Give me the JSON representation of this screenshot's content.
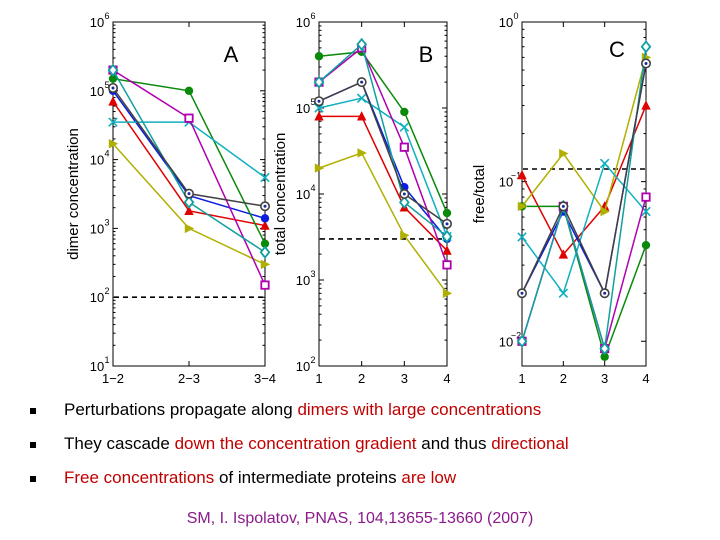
{
  "chart_data": [
    {
      "type": "line",
      "title": "A",
      "ylabel": "dimer concentration",
      "xlabel": "",
      "yscale": "log",
      "ylim": [
        10,
        1000000
      ],
      "y_ticks": [
        {
          "base": "10",
          "exp": "1"
        },
        {
          "base": "10",
          "exp": "2"
        },
        {
          "base": "10",
          "exp": "3"
        },
        {
          "base": "10",
          "exp": "4"
        },
        {
          "base": "10",
          "exp": "5"
        },
        {
          "base": "10",
          "exp": "6"
        }
      ],
      "categories": [
        "1−2",
        "2−3",
        "3−4"
      ],
      "threshold": 100,
      "series": [
        {
          "color": "#e00000",
          "marker": "triangle",
          "values": [
            70000,
            1800,
            1100
          ]
        },
        {
          "color": "#0a1ee0",
          "marker": "circle",
          "values": [
            100000,
            3000,
            1400
          ]
        },
        {
          "color": "#0a8a0a",
          "marker": "circle",
          "values": [
            150000,
            100000,
            600
          ]
        },
        {
          "color": "#b0b000",
          "marker": "triangle-right",
          "values": [
            17000,
            1000,
            300
          ]
        },
        {
          "color": "#10b0c0",
          "marker": "x",
          "values": [
            35000,
            35000,
            5500
          ]
        },
        {
          "color": "#b000b0",
          "marker": "square",
          "values": [
            200000,
            40000,
            150
          ]
        },
        {
          "color": "#10a0a0",
          "marker": "diamond",
          "values": [
            200000,
            2400,
            450
          ]
        },
        {
          "color": "#404040",
          "marker": "circle-open",
          "values": [
            110000,
            3200,
            2100
          ]
        }
      ]
    },
    {
      "type": "line",
      "title": "B",
      "ylabel": "total concentration",
      "xlabel": "",
      "yscale": "log",
      "ylim": [
        100,
        1000000
      ],
      "y_ticks": [
        {
          "base": "10",
          "exp": "2"
        },
        {
          "base": "10",
          "exp": "3"
        },
        {
          "base": "10",
          "exp": "4"
        },
        {
          "base": "10",
          "exp": "5"
        },
        {
          "base": "10",
          "exp": "6"
        }
      ],
      "categories": [
        "1",
        "2",
        "3",
        "4"
      ],
      "threshold": 3000,
      "series": [
        {
          "color": "#e00000",
          "marker": "triangle",
          "values": [
            80000,
            80000,
            7000,
            2200
          ]
        },
        {
          "color": "#0a1ee0",
          "marker": "circle",
          "values": [
            120000,
            200000,
            12000,
            3000
          ]
        },
        {
          "color": "#0a8a0a",
          "marker": "circle",
          "values": [
            400000,
            450000,
            90000,
            6000
          ]
        },
        {
          "color": "#b0b000",
          "marker": "triangle-right",
          "values": [
            20000,
            30000,
            3300,
            700
          ]
        },
        {
          "color": "#10b0c0",
          "marker": "x",
          "values": [
            100000,
            130000,
            60000,
            3200
          ]
        },
        {
          "color": "#b000b0",
          "marker": "square",
          "values": [
            200000,
            500000,
            35000,
            1500
          ]
        },
        {
          "color": "#10a0a0",
          "marker": "diamond",
          "values": [
            200000,
            550000,
            8000,
            3200
          ]
        },
        {
          "color": "#404040",
          "marker": "circle-open",
          "values": [
            120000,
            200000,
            10000,
            4500
          ]
        }
      ]
    },
    {
      "type": "line",
      "title": "C",
      "ylabel": "free/total",
      "xlabel": "",
      "yscale": "log",
      "ylim": [
        0.007,
        1
      ],
      "y_ticks": [
        {
          "base": "10",
          "exp": "−2"
        },
        {
          "base": "10",
          "exp": "−1"
        },
        {
          "base": "10",
          "exp": "0"
        }
      ],
      "tick_values": [
        0.01,
        0.1,
        1
      ],
      "categories": [
        "1",
        "2",
        "3",
        "4"
      ],
      "threshold": 0.12,
      "series": [
        {
          "color": "#e00000",
          "marker": "triangle",
          "values": [
            0.11,
            0.035,
            0.07,
            0.3
          ]
        },
        {
          "color": "#0a1ee0",
          "marker": "circle",
          "values": [
            0.02,
            0.065,
            0.02,
            0.55
          ]
        },
        {
          "color": "#0a8a0a",
          "marker": "circle",
          "values": [
            0.07,
            0.07,
            0.008,
            0.04
          ]
        },
        {
          "color": "#b0b000",
          "marker": "triangle-right",
          "values": [
            0.07,
            0.15,
            0.065,
            0.6
          ]
        },
        {
          "color": "#10b0c0",
          "marker": "x",
          "values": [
            0.045,
            0.02,
            0.13,
            0.065
          ]
        },
        {
          "color": "#b000b0",
          "marker": "square",
          "values": [
            0.01,
            0.07,
            0.009,
            0.08
          ]
        },
        {
          "color": "#10a0a0",
          "marker": "diamond",
          "values": [
            0.01,
            0.07,
            0.009,
            0.7
          ]
        },
        {
          "color": "#404040",
          "marker": "circle-open",
          "values": [
            0.02,
            0.07,
            0.02,
            0.55
          ]
        }
      ]
    }
  ],
  "bullets": [
    {
      "parts": [
        {
          "text": "Perturbations propagate along ",
          "hl": false
        },
        {
          "text": "dimers with large concentrations",
          "hl": true
        }
      ]
    },
    {
      "parts": [
        {
          "text": "They cascade ",
          "hl": false
        },
        {
          "text": "down the concentration gradient",
          "hl": true
        },
        {
          "text": " and thus ",
          "hl": false
        },
        {
          "text": "directional",
          "hl": true
        }
      ]
    },
    {
      "parts": [
        {
          "text": "Free concentrations",
          "hl": true
        },
        {
          "text": " of intermediate proteins ",
          "hl": false
        },
        {
          "text": "are low",
          "hl": true
        }
      ]
    }
  ],
  "citation": "SM, I. Ispolatov, PNAS, 104,13655-13660  (2007)"
}
